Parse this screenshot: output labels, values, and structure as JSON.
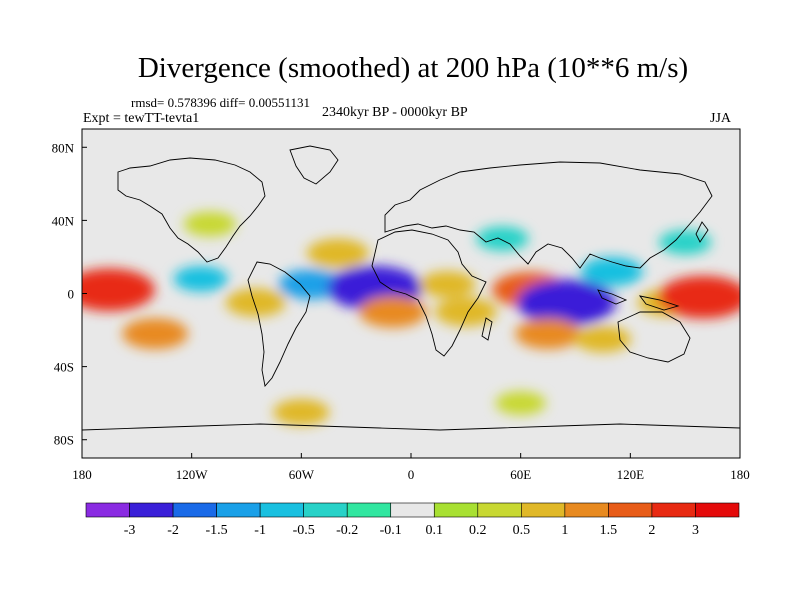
{
  "chart_data": {
    "type": "heatmap",
    "title": "Divergence (smoothed) at 200 hPa (10**6 m/s)",
    "subtitle_left": "rmsd= 0.578396 diff= 0.00551131",
    "experiment": "Expt = tewTT-tevta1",
    "period": "2340kyr BP - 0000kyr BP",
    "season": "JJA",
    "projection": "cylindrical equidistant",
    "xlim": [
      -180,
      180
    ],
    "ylim": [
      -90,
      90
    ],
    "x_ticks": [
      {
        "value": -180,
        "label": "180"
      },
      {
        "value": -120,
        "label": "120W"
      },
      {
        "value": -60,
        "label": "60W"
      },
      {
        "value": 0,
        "label": "0"
      },
      {
        "value": 60,
        "label": "60E"
      },
      {
        "value": 120,
        "label": "120E"
      },
      {
        "value": 180,
        "label": "180"
      }
    ],
    "y_ticks": [
      {
        "value": 80,
        "label": "80N"
      },
      {
        "value": 40,
        "label": "40N"
      },
      {
        "value": 0,
        "label": "0"
      },
      {
        "value": -40,
        "label": "40S"
      },
      {
        "value": -80,
        "label": "80S"
      }
    ],
    "colorbar": {
      "levels": [
        "-3",
        "-2",
        "-1.5",
        "-1",
        "-0.5",
        "-0.2",
        "-0.1",
        "0.1",
        "0.2",
        "0.5",
        "1",
        "1.5",
        "2",
        "3"
      ],
      "colors": [
        "#8a2be2",
        "#3a1fd8",
        "#1a6ae8",
        "#1aa0e8",
        "#19c0e0",
        "#28d2c8",
        "#31e6a0",
        "#e8e8e8",
        "#a8e032",
        "#c8d832",
        "#e0b828",
        "#e88a20",
        "#e85c18",
        "#e82a12",
        "#e40a0a"
      ]
    },
    "features": [
      {
        "lon": -165,
        "lat": 2,
        "value": 2.4
      },
      {
        "lon": -140,
        "lat": -22,
        "value": 1.1
      },
      {
        "lon": -115,
        "lat": 8,
        "value": -0.5
      },
      {
        "lon": -110,
        "lat": 38,
        "value": 0.4
      },
      {
        "lon": -85,
        "lat": -5,
        "value": 0.8
      },
      {
        "lon": -55,
        "lat": 5,
        "value": -1.0
      },
      {
        "lon": -40,
        "lat": 22,
        "value": 0.9
      },
      {
        "lon": -20,
        "lat": 3,
        "value": -2.6
      },
      {
        "lon": -10,
        "lat": -10,
        "value": 1.2
      },
      {
        "lon": 20,
        "lat": 5,
        "value": 0.6
      },
      {
        "lon": 30,
        "lat": -10,
        "value": 0.9
      },
      {
        "lon": 50,
        "lat": 30,
        "value": -0.4
      },
      {
        "lon": 65,
        "lat": 2,
        "value": 1.6
      },
      {
        "lon": 85,
        "lat": -5,
        "value": -2.8
      },
      {
        "lon": 75,
        "lat": -22,
        "value": 1.1
      },
      {
        "lon": 105,
        "lat": -25,
        "value": 0.6
      },
      {
        "lon": 110,
        "lat": 12,
        "value": -0.9
      },
      {
        "lon": 140,
        "lat": -5,
        "value": 0.7
      },
      {
        "lon": 160,
        "lat": -2,
        "value": 2.4
      },
      {
        "lon": 150,
        "lat": 28,
        "value": -0.4
      },
      {
        "lon": -60,
        "lat": -65,
        "value": 0.6
      },
      {
        "lon": 60,
        "lat": -60,
        "value": 0.3
      }
    ]
  }
}
